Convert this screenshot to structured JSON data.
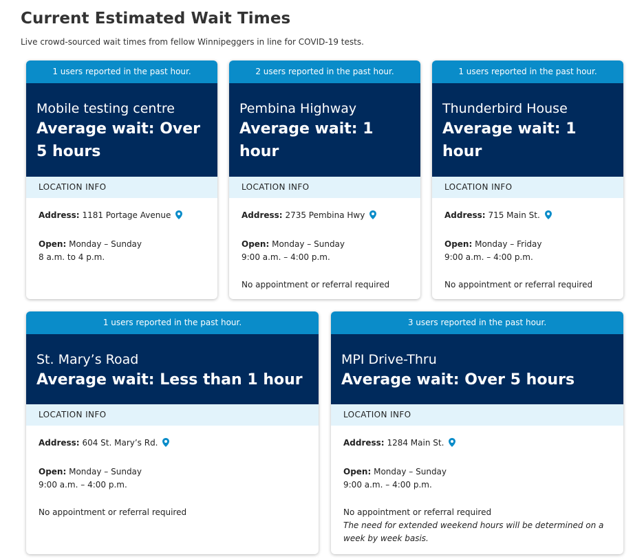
{
  "page": {
    "title": "Current Estimated Wait Times",
    "subtitle": "Live crowd-sourced wait times from fellow Winnipeggers in line for COVID-19 tests."
  },
  "labels": {
    "location_info": "LOCATION INFO",
    "address": "Address:",
    "open": "Open:"
  },
  "colors": {
    "top_bar": "#0a8cc9",
    "header": "#002a5c",
    "section": "#e2f3fb",
    "pin": "#0a8cc9"
  },
  "cards": [
    {
      "reports": "1 users reported in the past hour.",
      "name": "Mobile testing centre",
      "wait": "Average wait: Over 5 hours",
      "address": "1181 Portage Avenue",
      "days": "Monday – Sunday",
      "hours": "8 a.m. to 4 p.m."
    },
    {
      "reports": "2 users reported in the past hour.",
      "name": "Pembina Highway",
      "wait": "Average wait: 1 hour",
      "address": "2735 Pembina Hwy",
      "days": "Monday – Sunday",
      "hours": "9:00 a.m. – 4:00 p.m.",
      "note": "No appointment or referral required"
    },
    {
      "reports": "1 users reported in the past hour.",
      "name": "Thunderbird House",
      "wait": "Average wait: 1 hour",
      "address": "715 Main St.",
      "days": "Monday – Friday",
      "hours": "9:00 a.m. – 4:00 p.m.",
      "note": "No appointment or referral required"
    },
    {
      "reports": "1 users reported in the past hour.",
      "name": "St. Mary’s Road",
      "wait": "Average wait: Less than 1 hour",
      "address": "604 St. Mary’s Rd.",
      "days": "Monday – Sunday",
      "hours": "9:00 a.m. – 4:00 p.m.",
      "note": "No appointment or referral required"
    },
    {
      "reports": "3 users reported in the past hour.",
      "name": "MPI Drive-Thru",
      "wait": "Average wait: Over 5 hours",
      "address": "1284 Main St.",
      "days": "Monday – Sunday",
      "hours": "9:00 a.m. – 4:00 p.m.",
      "note": "No appointment or referral required",
      "note_italic": "The need for extended weekend hours will be determined on a week by week basis."
    }
  ]
}
